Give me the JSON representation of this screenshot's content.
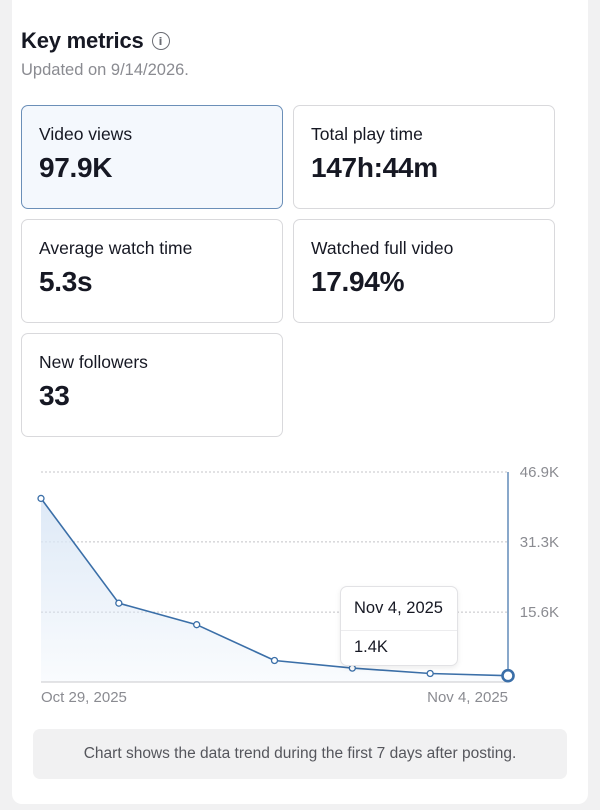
{
  "header": {
    "title": "Key metrics",
    "info_icon": "info-icon",
    "updated": "Updated on 9/14/2026."
  },
  "metrics": [
    {
      "label": "Video views",
      "value": "97.9K",
      "selected": true
    },
    {
      "label": "Total play time",
      "value": "147h:44m"
    },
    {
      "label": "Average watch time",
      "value": "5.3s"
    },
    {
      "label": "Watched full video",
      "value": "17.94%"
    },
    {
      "label": "New followers",
      "value": "33"
    }
  ],
  "chart_data": {
    "type": "area",
    "x": [
      "Oct 29, 2025",
      "Oct 30, 2025",
      "Oct 31, 2025",
      "Nov 1, 2025",
      "Nov 2, 2025",
      "Nov 3, 2025",
      "Nov 4, 2025"
    ],
    "values": [
      41000,
      17600,
      12800,
      4800,
      3100,
      1900,
      1400
    ],
    "x_ticks": [
      "Oct 29, 2025",
      "Nov 4, 2025"
    ],
    "y_ticks": [
      "46.9K",
      "31.3K",
      "15.6K"
    ],
    "y_tick_values": [
      46900,
      31300,
      15600
    ],
    "ylim": [
      0,
      46900
    ],
    "grid": true,
    "line_color": "#3b6fa8",
    "fill_color": "#dce8f6",
    "tooltip": {
      "date": "Nov 4, 2025",
      "value": "1.4K"
    }
  },
  "footer": {
    "note": "Chart shows the data trend during the first 7 days after posting."
  }
}
